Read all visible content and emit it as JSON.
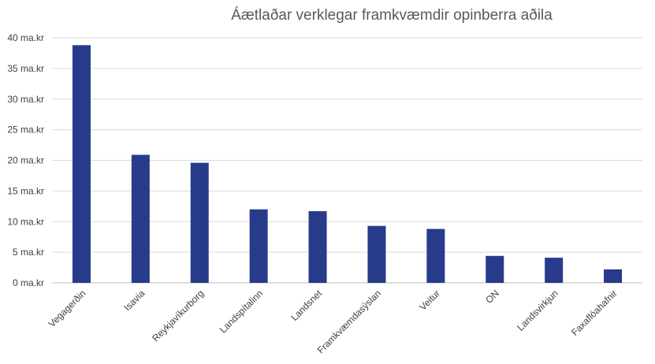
{
  "chart_data": {
    "type": "bar",
    "title": "Áætlaðar verklegar framkvæmdir opinberra aðila",
    "xlabel": "",
    "ylabel": "",
    "categories": [
      "Vegagerðin",
      "Isavia",
      "Reykjavíkurborg",
      "Landspítalinn",
      "Landsnet",
      "Framkvæmdasýslan",
      "Veitur",
      "ON",
      "Landsvirkjun",
      "Faxaflóahafnir"
    ],
    "values": [
      38.8,
      20.9,
      19.6,
      12.0,
      11.7,
      9.3,
      8.8,
      4.4,
      4.1,
      2.2
    ],
    "ylim": [
      0,
      40
    ],
    "yticks": [
      0,
      5,
      10,
      15,
      20,
      25,
      30,
      35,
      40
    ],
    "ytick_labels": [
      "0 ma.kr",
      "5 ma.kr",
      "10 ma.kr",
      "15 ma.kr",
      "20 ma.kr",
      "25 ma.kr",
      "30 ma.kr",
      "35 ma.kr",
      "40 ma.kr"
    ],
    "grid": true,
    "legend": "none",
    "bar_color": "#283b8b"
  }
}
